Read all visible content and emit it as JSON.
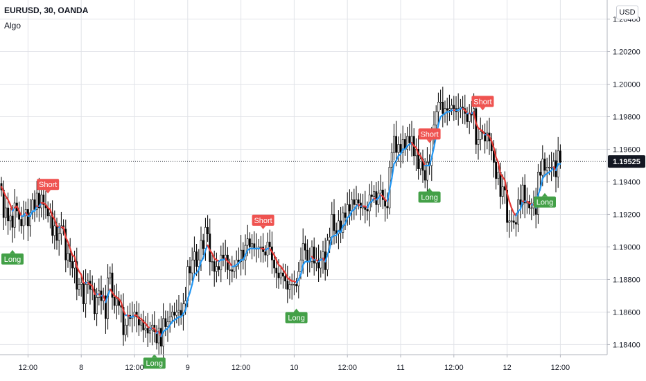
{
  "header": {
    "symbol": "EURUSD, 30, OANDA",
    "indicator": "Algo",
    "currency_button": "USD"
  },
  "colors": {
    "up_candle": "#ffffff",
    "down_candle": "#000000",
    "wick": "#000000",
    "ma_bear": "#e53935",
    "ma_bull": "#2196f3",
    "long_label": "#43a047",
    "short_label": "#ef5350",
    "price_badge": "#131722",
    "grid": "#e1e3e8"
  },
  "chart_data": {
    "type": "candlestick",
    "ylim": [
      1.18338,
      1.20517
    ],
    "yticks": [
      {
        "value": 1.184,
        "label": "1.18400"
      },
      {
        "value": 1.186,
        "label": "1.18600"
      },
      {
        "value": 1.188,
        "label": "1.18800"
      },
      {
        "value": 1.19,
        "label": "1.19000"
      },
      {
        "value": 1.192,
        "label": "1.19200"
      },
      {
        "value": 1.194,
        "label": "1.19400"
      },
      {
        "value": 1.196,
        "label": "1.19600"
      },
      {
        "value": 1.198,
        "label": "1.19800"
      },
      {
        "value": 1.2,
        "label": "1.20000"
      },
      {
        "value": 1.202,
        "label": "1.20200"
      },
      {
        "value": 1.204,
        "label": "1.20400"
      }
    ],
    "xticks": [
      {
        "bar": 12,
        "label": "12:00"
      },
      {
        "bar": 36,
        "label": "8"
      },
      {
        "bar": 60,
        "label": "12:00"
      },
      {
        "bar": 84,
        "label": "9"
      },
      {
        "bar": 108,
        "label": "12:00"
      },
      {
        "bar": 132,
        "label": "10"
      },
      {
        "bar": 156,
        "label": "12:00"
      },
      {
        "bar": 180,
        "label": "11"
      },
      {
        "bar": 204,
        "label": "12:00"
      },
      {
        "bar": 228,
        "label": "12"
      },
      {
        "bar": 252,
        "label": "12:00"
      }
    ],
    "last_price": {
      "value": 1.19525,
      "label": "1.19525"
    },
    "closes": [
      1.1935,
      1.1918,
      1.1924,
      1.1916,
      1.1919,
      1.1912,
      1.1927,
      1.1922,
      1.1917,
      1.1913,
      1.1919,
      1.1923,
      1.1913,
      1.1921,
      1.1929,
      1.1923,
      1.1933,
      1.1924,
      1.1932,
      1.1926,
      1.1924,
      1.1919,
      1.1921,
      1.1907,
      1.1913,
      1.1904,
      1.1908,
      1.1913,
      1.1911,
      1.1892,
      1.1896,
      1.1891,
      1.1887,
      1.1891,
      1.1874,
      1.1877,
      1.1878,
      1.1865,
      1.1877,
      1.1879,
      1.1874,
      1.1874,
      1.1859,
      1.1869,
      1.1873,
      1.1867,
      1.187,
      1.1856,
      1.1881,
      1.1884,
      1.1869,
      1.1864,
      1.1868,
      1.1864,
      1.1863,
      1.1846,
      1.1852,
      1.1858,
      1.1856,
      1.1857,
      1.186,
      1.1857,
      1.1852,
      1.1855,
      1.1849,
      1.185,
      1.1847,
      1.1849,
      1.1852,
      1.1848,
      1.1841,
      1.185,
      1.1839,
      1.1856,
      1.1851,
      1.1854,
      1.1857,
      1.186,
      1.1858,
      1.186,
      1.1861,
      1.1858,
      1.1865,
      1.1867,
      1.1888,
      1.1884,
      1.1892,
      1.1897,
      1.1888,
      1.1892,
      1.1904,
      1.1899,
      1.1912,
      1.1908,
      1.1891,
      1.1891,
      1.1885,
      1.1888,
      1.1886,
      1.1895,
      1.1893,
      1.1895,
      1.1886,
      1.1886,
      1.1885,
      1.1888,
      1.1892,
      1.1891,
      1.1898,
      1.1892,
      1.1901,
      1.1905,
      1.19,
      1.1902,
      1.1899,
      1.1899,
      1.19,
      1.19,
      1.1897,
      1.1895,
      1.1903,
      1.19,
      1.1892,
      1.1887,
      1.1884,
      1.1881,
      1.1884,
      1.1882,
      1.1879,
      1.1874,
      1.1877,
      1.1877,
      1.1877,
      1.1876,
      1.1885,
      1.1892,
      1.1902,
      1.1898,
      1.1891,
      1.1891,
      1.19,
      1.189,
      1.1892,
      1.1887,
      1.1893,
      1.1897,
      1.1886,
      1.1904,
      1.1906,
      1.192,
      1.191,
      1.1908,
      1.1916,
      1.1909,
      1.1921,
      1.1918,
      1.1926,
      1.1922,
      1.1929,
      1.1926,
      1.1929,
      1.1927,
      1.1924,
      1.1925,
      1.1923,
      1.1922,
      1.1932,
      1.1931,
      1.1934,
      1.1926,
      1.1933,
      1.1935,
      1.1929,
      1.1925,
      1.1924,
      1.1949,
      1.1958,
      1.1968,
      1.1958,
      1.1963,
      1.1958,
      1.1966,
      1.196,
      1.1968,
      1.1964,
      1.1968,
      1.1956,
      1.196,
      1.1948,
      1.1954,
      1.1947,
      1.1941,
      1.1952,
      1.195,
      1.1967,
      1.1975,
      1.1983,
      1.1989,
      1.1989,
      1.1982,
      1.1985,
      1.1984,
      1.1985,
      1.1987,
      1.1985,
      1.1983,
      1.1985,
      1.1986,
      1.1985,
      1.1982,
      1.1977,
      1.1982,
      1.1981,
      1.1985,
      1.1963,
      1.1966,
      1.1971,
      1.197,
      1.1965,
      1.197,
      1.1965,
      1.1959,
      1.1952,
      1.1942,
      1.1946,
      1.1931,
      1.1937,
      1.1935,
      1.1915,
      1.1916,
      1.1916,
      1.1915,
      1.1914,
      1.1929,
      1.1926,
      1.1938,
      1.1927,
      1.1928,
      1.1924,
      1.1924,
      1.1927,
      1.192,
      1.1946,
      1.1944,
      1.1954,
      1.1947,
      1.1949,
      1.1949,
      1.1949,
      1.1953,
      1.1943,
      1.1959,
      1.1952
    ],
    "ma": [
      1.1937,
      1.1934,
      1.1931,
      1.1929,
      1.1926,
      1.1922,
      1.1924,
      1.1925,
      1.1922,
      1.1919,
      1.1919,
      1.1921,
      1.1919,
      1.1919,
      1.1922,
      1.1922,
      1.1925,
      1.1925,
      1.1927,
      1.1927,
      1.1926,
      1.1924,
      1.1923,
      1.1919,
      1.1917,
      1.1913,
      1.1912,
      1.1912,
      1.1912,
      1.1906,
      1.1903,
      1.1899,
      1.1895,
      1.1894,
      1.1888,
      1.1885,
      1.1883,
      1.1878,
      1.1878,
      1.1878,
      1.1877,
      1.1876,
      1.1871,
      1.1871,
      1.1871,
      1.187,
      1.187,
      1.1866,
      1.187,
      1.1874,
      1.1872,
      1.187,
      1.1869,
      1.1868,
      1.1866,
      1.1861,
      1.1858,
      1.1858,
      1.1857,
      1.1857,
      1.1858,
      1.1858,
      1.1856,
      1.1856,
      1.1854,
      1.1853,
      1.1851,
      1.185,
      1.185,
      1.185,
      1.1847,
      1.1848,
      1.1845,
      1.1848,
      1.1849,
      1.185,
      1.1852,
      1.1854,
      1.1855,
      1.1856,
      1.1857,
      1.1857,
      1.1859,
      1.1861,
      1.1868,
      1.1872,
      1.1877,
      1.1883,
      1.1884,
      1.1886,
      1.1891,
      1.1893,
      1.1898,
      1.1901,
      1.1898,
      1.1896,
      1.1893,
      1.1892,
      1.1891,
      1.1892,
      1.1892,
      1.1893,
      1.1891,
      1.189,
      1.1888,
      1.1888,
      1.1889,
      1.189,
      1.1892,
      1.1892,
      1.1895,
      1.1898,
      1.1899,
      1.1899,
      1.1899,
      1.1899,
      1.1899,
      1.1899,
      1.1899,
      1.1898,
      1.1899,
      1.1899,
      1.1897,
      1.1895,
      1.1892,
      1.1889,
      1.1888,
      1.1886,
      1.1884,
      1.1881,
      1.188,
      1.1879,
      1.1879,
      1.1878,
      1.188,
      1.1883,
      1.1889,
      1.1891,
      1.1891,
      1.1891,
      1.1894,
      1.1892,
      1.1892,
      1.1891,
      1.1892,
      1.1893,
      1.1891,
      1.1895,
      1.1899,
      1.1906,
      1.1907,
      1.1907,
      1.191,
      1.1909,
      1.1913,
      1.1914,
      1.1918,
      1.1919,
      1.1922,
      1.1923,
      1.1925,
      1.1926,
      1.1925,
      1.1925,
      1.1925,
      1.1924,
      1.1927,
      1.1928,
      1.193,
      1.1929,
      1.193,
      1.1932,
      1.1931,
      1.1929,
      1.1928,
      1.1935,
      1.1942,
      1.1951,
      1.1953,
      1.1956,
      1.1957,
      1.196,
      1.196,
      1.1962,
      1.1963,
      1.1964,
      1.1962,
      1.1961,
      1.1957,
      1.1956,
      1.1953,
      1.195,
      1.195,
      1.195,
      1.1955,
      1.1961,
      1.1968,
      1.1975,
      1.198,
      1.1981,
      1.1982,
      1.1983,
      1.1983,
      1.1984,
      1.1984,
      1.1984,
      1.1984,
      1.1985,
      1.1985,
      1.1984,
      1.1982,
      1.1982,
      1.1982,
      1.1983,
      1.1976,
      1.1973,
      1.1972,
      1.1971,
      1.1969,
      1.1969,
      1.1968,
      1.1965,
      1.1961,
      1.1955,
      1.1952,
      1.1945,
      1.1943,
      1.1941,
      1.1933,
      1.1928,
      1.1924,
      1.1921,
      1.1919,
      1.1922,
      1.1923,
      1.1928,
      1.1928,
      1.1928,
      1.1927,
      1.1926,
      1.1926,
      1.1924,
      1.1932,
      1.1936,
      1.1942,
      1.1944,
      1.1945,
      1.1946,
      1.1947,
      1.1949,
      1.1947,
      1.1951,
      1.1951
    ],
    "signals": [
      {
        "bar": 5,
        "label": "Long",
        "type": "long"
      },
      {
        "bar": 21,
        "label": "Short",
        "type": "short"
      },
      {
        "bar": 69,
        "label": "Long",
        "type": "long"
      },
      {
        "bar": 118,
        "label": "Short",
        "type": "short"
      },
      {
        "bar": 133,
        "label": "Long",
        "type": "long"
      },
      {
        "bar": 193,
        "label": "Long",
        "type": "long"
      },
      {
        "bar": 193,
        "label": "Short",
        "type": "short"
      },
      {
        "bar": 217,
        "label": "Short",
        "type": "short"
      },
      {
        "bar": 245,
        "label": "Long",
        "type": "long"
      }
    ]
  }
}
